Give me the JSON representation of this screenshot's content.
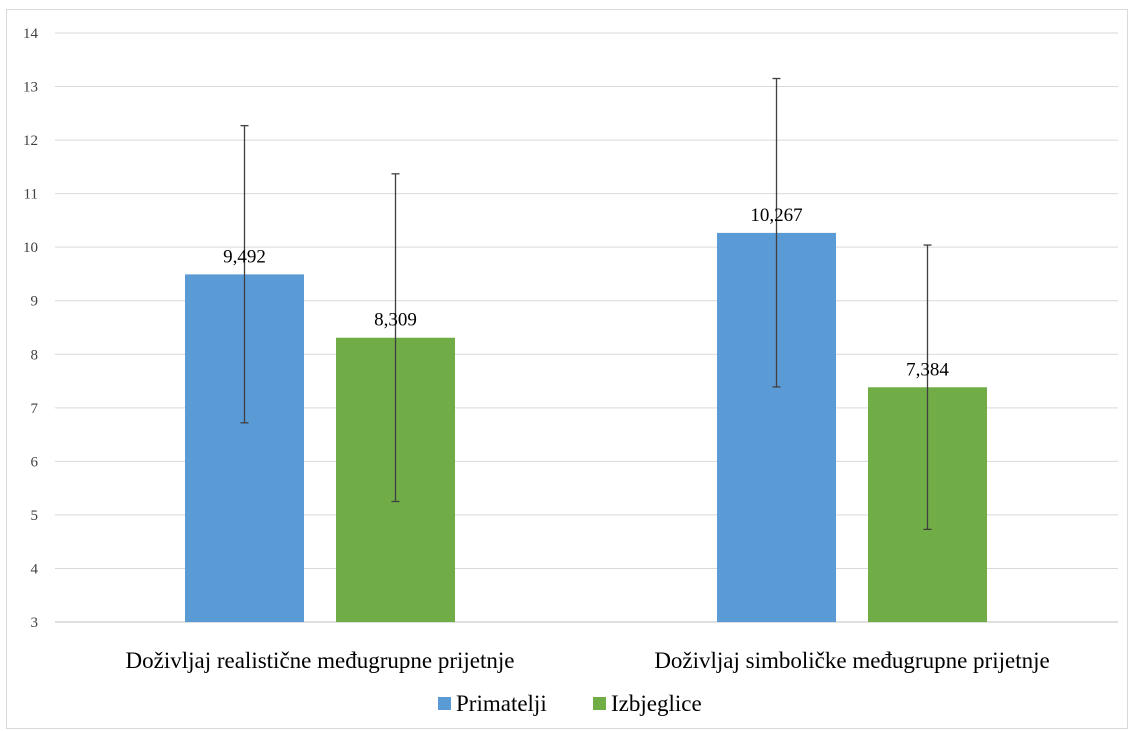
{
  "chart_data": {
    "type": "bar",
    "title": "",
    "xlabel": "",
    "ylabel": "",
    "categories": [
      "Doživljaj realistične međugrupne prijetnje",
      "Doživljaj simboličke međugrupne prijetnje"
    ],
    "series": [
      {
        "name": "Primatelji",
        "color": "#5b9bd5",
        "values": [
          9.492,
          10.267
        ],
        "labels": [
          "9,492",
          "10,267"
        ],
        "error_low": [
          6.72,
          7.39
        ],
        "error_high": [
          12.27,
          13.15
        ]
      },
      {
        "name": "Izbjeglice",
        "color": "#70ad47",
        "values": [
          8.309,
          7.384
        ],
        "labels": [
          "8,309",
          "7,384"
        ],
        "error_low": [
          5.25,
          4.73
        ],
        "error_high": [
          11.37,
          10.04
        ]
      }
    ],
    "ylim": [
      3,
      14
    ],
    "yticks": [
      3,
      4,
      5,
      6,
      7,
      8,
      9,
      10,
      11,
      12,
      13,
      14
    ],
    "grid": true,
    "legend_position": "bottom"
  }
}
